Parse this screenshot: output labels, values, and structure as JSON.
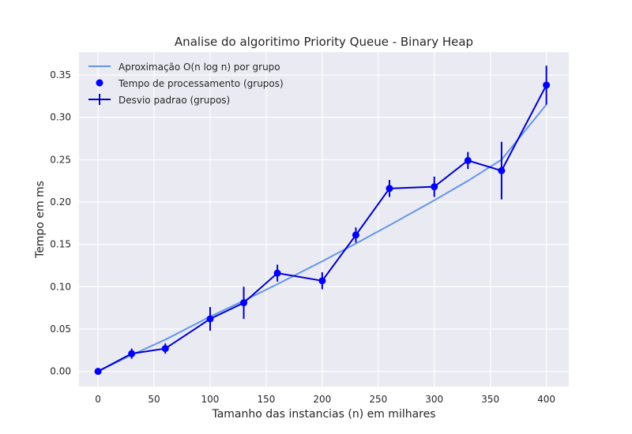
{
  "chart_data": {
    "type": "line",
    "title": "Analise do algoritimo Priority Queue - Binary Heap",
    "xlabel": "Tamanho das instancias (n) em milhares",
    "ylabel": "Tempo em ms",
    "xlim": [
      -17,
      420
    ],
    "ylim": [
      -0.018,
      0.377
    ],
    "xticks": [
      0,
      50,
      100,
      150,
      200,
      250,
      300,
      350,
      400
    ],
    "yticks": [
      0.0,
      0.05,
      0.1,
      0.15,
      0.2,
      0.25,
      0.3,
      0.35
    ],
    "ytick_labels": [
      "0.00",
      "0.05",
      "0.10",
      "0.15",
      "0.20",
      "0.25",
      "0.30",
      "0.35"
    ],
    "grid": true,
    "legend_position": "top-left",
    "x": [
      0,
      30,
      60,
      100,
      130,
      160,
      200,
      230,
      260,
      300,
      330,
      360,
      400
    ],
    "series": [
      {
        "name": "Aproximação O(n log n) por grupo",
        "kind": "fit-line",
        "color": "#6495ed",
        "values": [
          0.0,
          0.0195,
          0.0375,
          0.0647,
          0.0835,
          0.103,
          0.13,
          0.151,
          0.1725,
          0.202,
          0.225,
          0.25,
          0.315
        ]
      },
      {
        "name": "Tempo de processamento (grupos)",
        "kind": "scatter",
        "color": "#0000ff",
        "values": [
          0.0,
          0.021,
          0.027,
          0.062,
          0.081,
          0.116,
          0.107,
          0.161,
          0.216,
          0.218,
          0.249,
          0.237,
          0.338
        ]
      },
      {
        "name": "Desvio padrao (grupos)",
        "kind": "errorbar",
        "color": "#0000cd",
        "values": [
          0.0,
          0.021,
          0.027,
          0.062,
          0.081,
          0.116,
          0.107,
          0.161,
          0.216,
          0.218,
          0.249,
          0.237,
          0.338
        ],
        "errors": [
          0.001,
          0.006,
          0.006,
          0.014,
          0.019,
          0.01,
          0.01,
          0.009,
          0.01,
          0.012,
          0.01,
          0.034,
          0.023
        ]
      }
    ],
    "colors": {
      "plot_background": "#eaeaf2",
      "grid": "#ffffff",
      "text": "#262626"
    }
  }
}
